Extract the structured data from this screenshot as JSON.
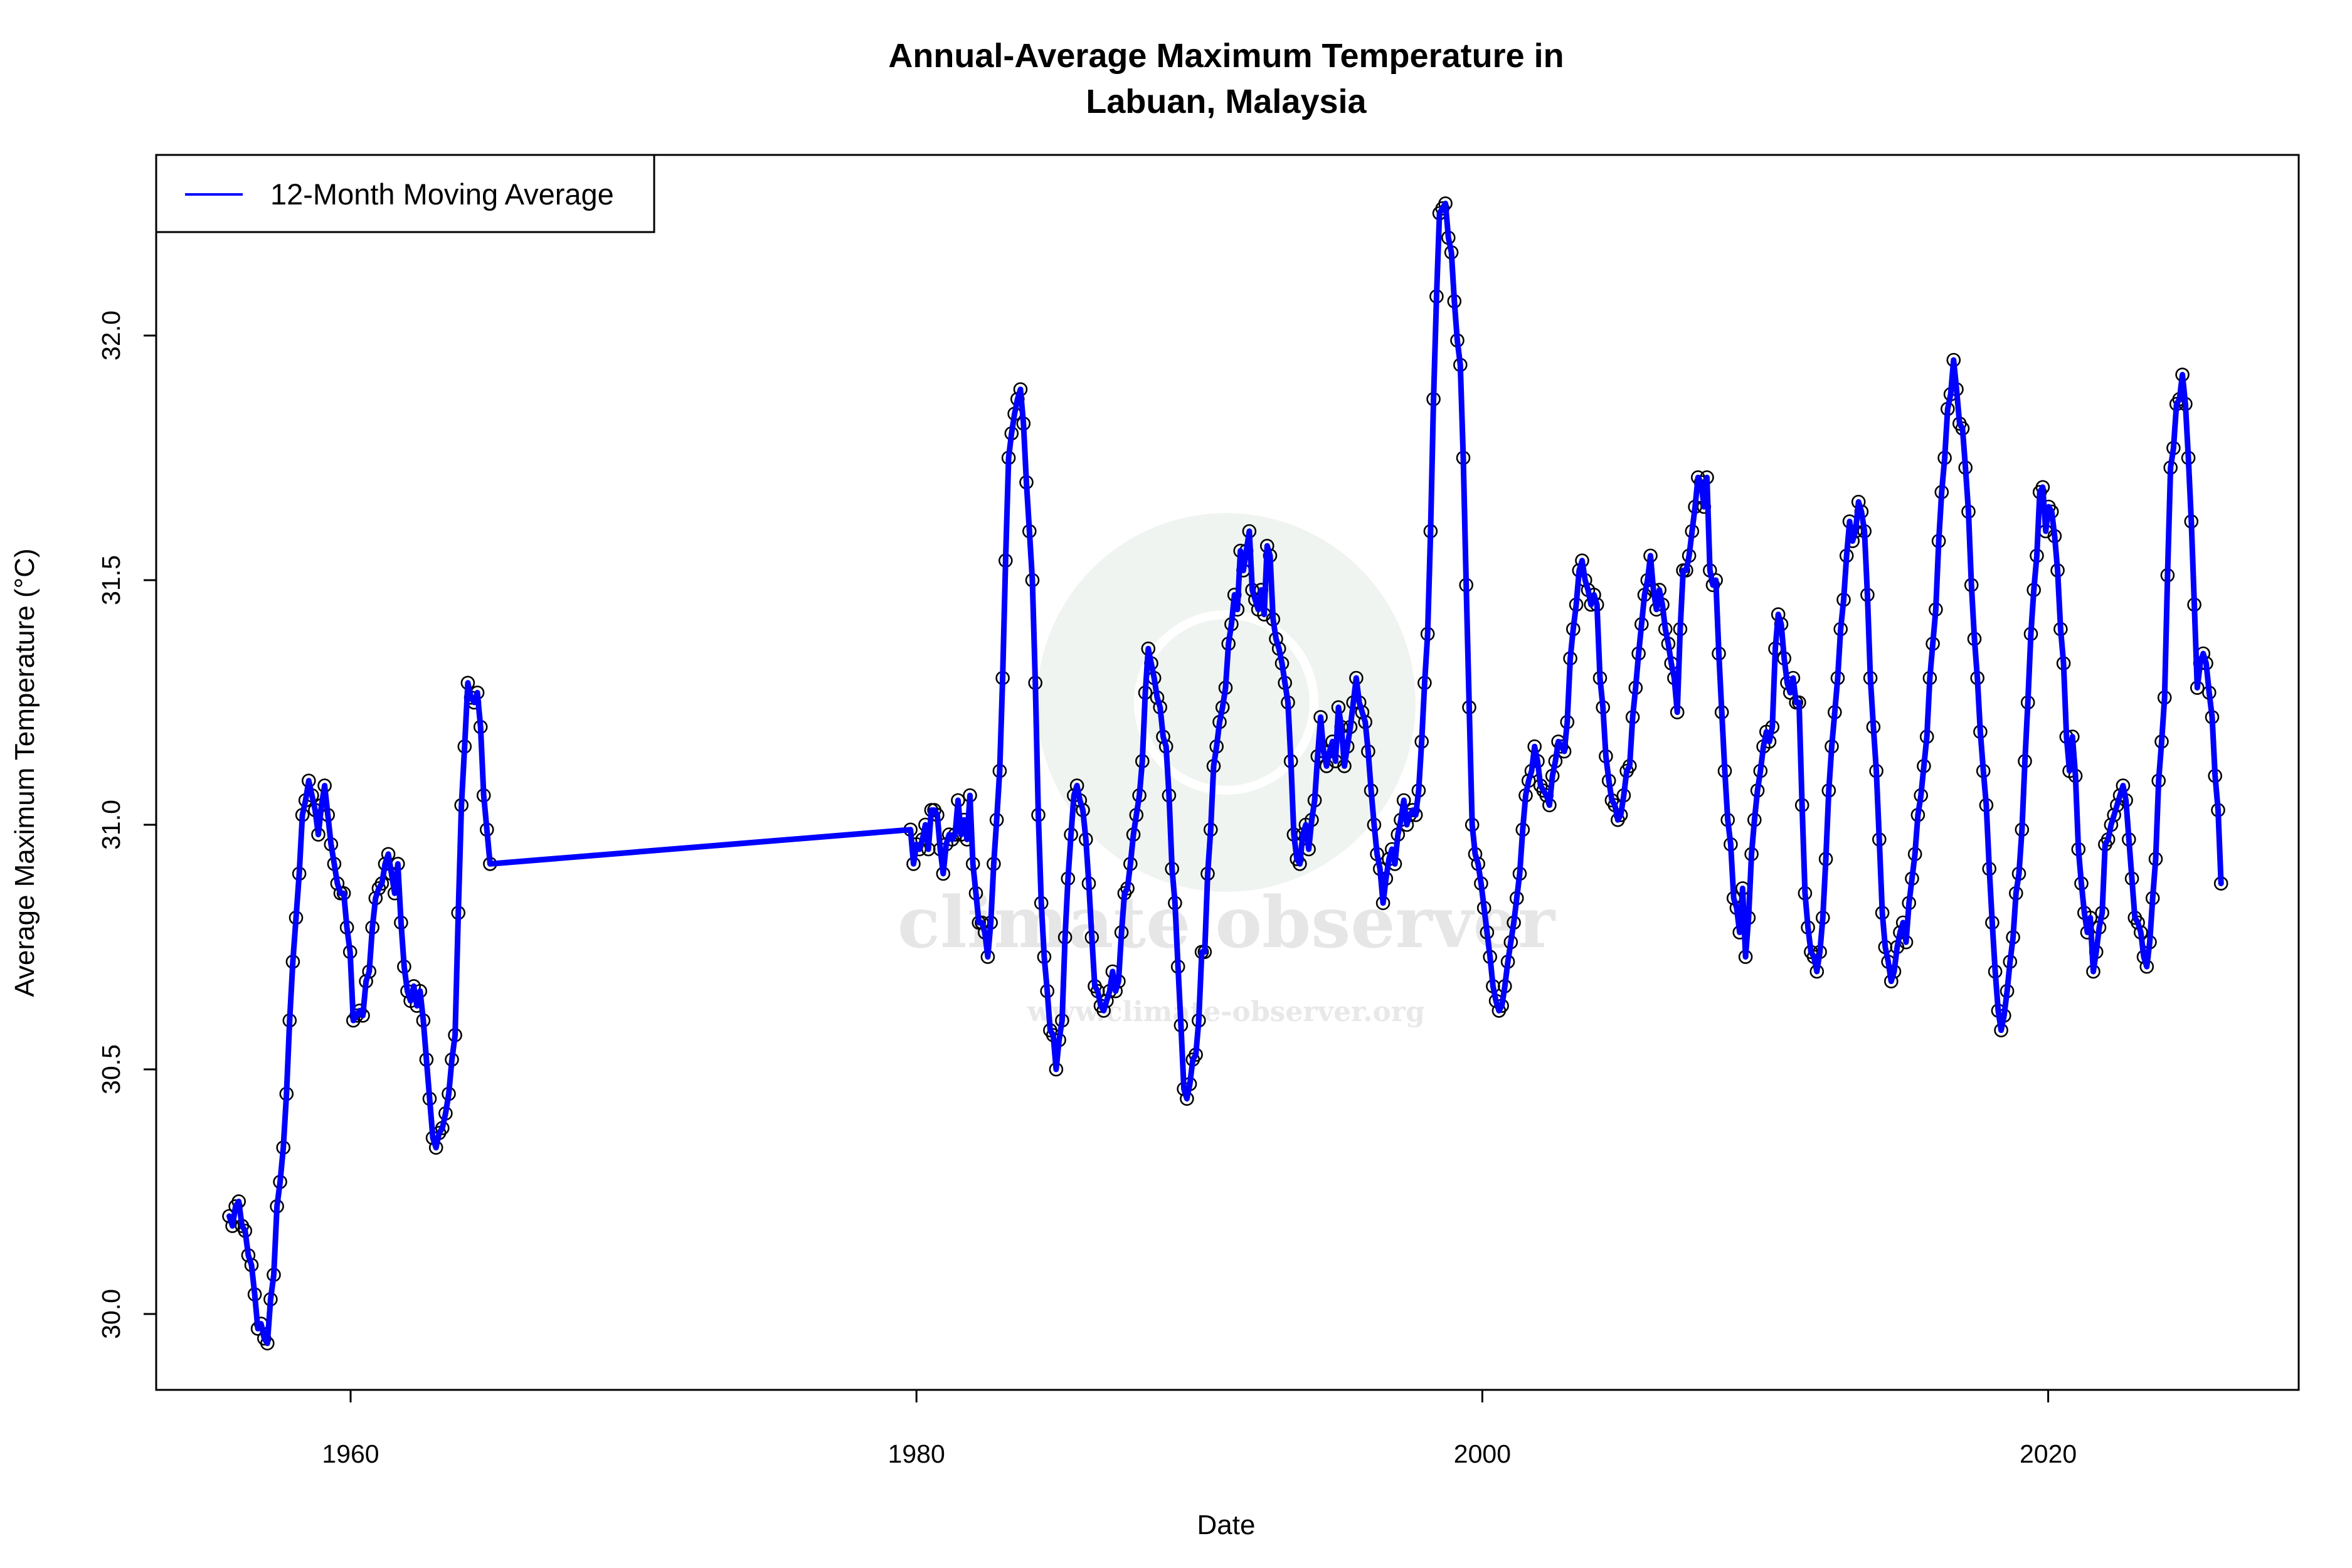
{
  "chart_data": {
    "type": "line",
    "title": "Annual-Average Maximum Temperature in\nLabuan, Malaysia",
    "title_lines": [
      "Annual-Average Maximum Temperature in",
      "Labuan, Malaysia"
    ],
    "xlabel": "Date",
    "ylabel": "Average Maximum Temperature (°C)",
    "xlim": [
      1953,
      2029
    ],
    "ylim": [
      29.9,
      32.35
    ],
    "x_ticks": [
      1960,
      1980,
      2000,
      2020
    ],
    "x_tick_labels": [
      "1960",
      "1980",
      "2000",
      "2020"
    ],
    "y_ticks": [
      30.0,
      30.5,
      31.0,
      31.5,
      32.0
    ],
    "y_tick_labels": [
      "30.0",
      "30.5",
      "31.0",
      "31.5",
      "32.0"
    ],
    "grid": false,
    "legend": {
      "placement": "top-left",
      "entries": [
        "12-Month Moving Average"
      ]
    },
    "series": [
      {
        "name": "12-Month Moving Average",
        "color": "#0000ff",
        "markers": "open-circle",
        "marker_color": "#000000",
        "segments": [
          {
            "start_year": 1955.71,
            "end_year": 1964.93,
            "values": [
              30.2,
              30.18,
              30.22,
              30.23,
              30.18,
              30.17,
              30.12,
              30.1,
              30.04,
              29.97,
              29.98,
              29.95,
              29.94,
              30.03,
              30.08,
              30.22,
              30.27,
              30.34,
              30.45,
              30.6,
              30.72,
              30.81,
              30.9,
              31.02,
              31.05,
              31.09,
              31.06,
              31.03,
              30.98,
              31.04,
              31.08,
              31.02,
              30.96,
              30.92,
              30.88,
              30.86,
              30.86,
              30.79,
              30.74,
              30.6,
              30.61,
              30.62,
              30.61,
              30.68,
              30.7,
              30.79,
              30.85,
              30.87,
              30.88,
              30.92,
              30.94,
              30.9,
              30.86,
              30.92,
              30.8,
              30.71,
              30.66,
              30.64,
              30.67,
              30.63,
              30.66,
              30.6,
              30.52,
              30.44,
              30.36,
              30.34,
              30.37,
              30.38,
              30.41,
              30.45,
              30.52,
              30.57,
              30.82,
              31.04,
              31.16,
              31.29,
              31.26,
              31.25,
              31.27,
              31.2,
              31.06,
              30.99,
              30.92
            ]
          },
          {
            "start_year": 1979.79,
            "end_year": 2026.11,
            "values": [
              30.99,
              30.92,
              30.96,
              30.95,
              30.97,
              31.0,
              30.95,
              31.03,
              31.03,
              31.02,
              30.95,
              30.9,
              30.96,
              30.98,
              30.97,
              30.98,
              31.05,
              30.98,
              31.01,
              30.97,
              31.06,
              30.92,
              30.86,
              30.8,
              30.8,
              30.78,
              30.73,
              30.8,
              30.92,
              31.01,
              31.11,
              31.3,
              31.54,
              31.75,
              31.8,
              31.84,
              31.87,
              31.89,
              31.82,
              31.7,
              31.6,
              31.5,
              31.29,
              31.02,
              30.84,
              30.73,
              30.66,
              30.58,
              30.57,
              30.5,
              30.56,
              30.6,
              30.77,
              30.89,
              30.98,
              31.06,
              31.08,
              31.05,
              31.03,
              30.97,
              30.88,
              30.77,
              30.67,
              30.66,
              30.63,
              30.62,
              30.64,
              30.66,
              30.7,
              30.66,
              30.68,
              30.78,
              30.86,
              30.87,
              30.92,
              30.98,
              31.02,
              31.06,
              31.13,
              31.27,
              31.36,
              31.33,
              31.3,
              31.26,
              31.24,
              31.18,
              31.16,
              31.06,
              30.91,
              30.84,
              30.71,
              30.59,
              30.46,
              30.44,
              30.47,
              30.52,
              30.53,
              30.6,
              30.74,
              30.74,
              30.9,
              30.99,
              31.12,
              31.16,
              31.21,
              31.24,
              31.28,
              31.37,
              31.41,
              31.47,
              31.44,
              31.56,
              31.52,
              31.56,
              31.6,
              31.48,
              31.46,
              31.44,
              31.48,
              31.43,
              31.57,
              31.55,
              31.42,
              31.38,
              31.36,
              31.33,
              31.29,
              31.25,
              31.13,
              30.98,
              30.93,
              30.92,
              30.98,
              31.0,
              30.95,
              31.01,
              31.05,
              31.14,
              31.22,
              31.15,
              31.12,
              31.15,
              31.17,
              31.13,
              31.24,
              31.2,
              31.12,
              31.16,
              31.2,
              31.25,
              31.3,
              31.25,
              31.23,
              31.21,
              31.15,
              31.07,
              31.0,
              30.94,
              30.91,
              30.84,
              30.89,
              30.93,
              30.95,
              30.92,
              30.98,
              31.01,
              31.05,
              31.0,
              31.02,
              31.03,
              31.02,
              31.07,
              31.17,
              31.29,
              31.39,
              31.6,
              31.87,
              32.08,
              32.25,
              32.26,
              32.27,
              32.2,
              32.17,
              32.07,
              31.99,
              31.94,
              31.75,
              31.49,
              31.24,
              31.0,
              30.94,
              30.92,
              30.88,
              30.83,
              30.78,
              30.73,
              30.67,
              30.64,
              30.62,
              30.63,
              30.67,
              30.72,
              30.76,
              30.8,
              30.85,
              30.9,
              30.99,
              31.06,
              31.09,
              31.11,
              31.16,
              31.13,
              31.08,
              31.07,
              31.06,
              31.04,
              31.1,
              31.13,
              31.17,
              31.16,
              31.15,
              31.21,
              31.34,
              31.4,
              31.45,
              31.52,
              31.54,
              31.5,
              31.48,
              31.45,
              31.47,
              31.45,
              31.3,
              31.24,
              31.14,
              31.09,
              31.05,
              31.04,
              31.01,
              31.02,
              31.06,
              31.11,
              31.12,
              31.22,
              31.28,
              31.35,
              31.41,
              31.47,
              31.5,
              31.55,
              31.48,
              31.44,
              31.48,
              31.45,
              31.4,
              31.37,
              31.33,
              31.3,
              31.23,
              31.4,
              31.52,
              31.52,
              31.55,
              31.6,
              31.65,
              31.71,
              31.7,
              31.65,
              31.71,
              31.52,
              31.49,
              31.5,
              31.35,
              31.23,
              31.11,
              31.01,
              30.96,
              30.85,
              30.83,
              30.78,
              30.87,
              30.73,
              30.81,
              30.94,
              31.01,
              31.07,
              31.11,
              31.16,
              31.19,
              31.17,
              31.2,
              31.36,
              31.43,
              31.41,
              31.34,
              31.29,
              31.27,
              31.3,
              31.25,
              31.25,
              31.04,
              30.86,
              30.79,
              30.74,
              30.73,
              30.7,
              30.74,
              30.81,
              30.93,
              31.07,
              31.16,
              31.23,
              31.3,
              31.4,
              31.46,
              31.55,
              31.62,
              31.58,
              31.6,
              31.66,
              31.64,
              31.6,
              31.47,
              31.3,
              31.2,
              31.11,
              30.97,
              30.82,
              30.75,
              30.72,
              30.68,
              30.7,
              30.75,
              30.78,
              30.8,
              30.76,
              30.84,
              30.89,
              30.94,
              31.02,
              31.06,
              31.12,
              31.18,
              31.3,
              31.37,
              31.44,
              31.58,
              31.68,
              31.75,
              31.85,
              31.88,
              31.95,
              31.89,
              31.82,
              31.81,
              31.73,
              31.64,
              31.49,
              31.38,
              31.3,
              31.19,
              31.11,
              31.04,
              30.91,
              30.8,
              30.7,
              30.62,
              30.58,
              30.61,
              30.66,
              30.72,
              30.77,
              30.86,
              30.9,
              30.99,
              31.13,
              31.25,
              31.39,
              31.48,
              31.55,
              31.68,
              31.69,
              31.6,
              31.65,
              31.64,
              31.59,
              31.52,
              31.4,
              31.33,
              31.18,
              31.11,
              31.18,
              31.1,
              30.95,
              30.88,
              30.82,
              30.78,
              30.81,
              30.7,
              30.74,
              30.79,
              30.82,
              30.96,
              30.97,
              31.0,
              31.02,
              31.04,
              31.06,
              31.08,
              31.05,
              30.97,
              30.89,
              30.81,
              30.8,
              30.78,
              30.73,
              30.71,
              30.76,
              30.85,
              30.93,
              31.09,
              31.17,
              31.26,
              31.51,
              31.73,
              31.77,
              31.86,
              31.87,
              31.92,
              31.86,
              31.75,
              31.62,
              31.45,
              31.28,
              31.33,
              31.35,
              31.33,
              31.27,
              31.22,
              31.1,
              31.03,
              30.88
            ]
          }
        ]
      }
    ]
  },
  "watermark": {
    "name": "climate observer",
    "url": "www.climate-observer.org"
  }
}
